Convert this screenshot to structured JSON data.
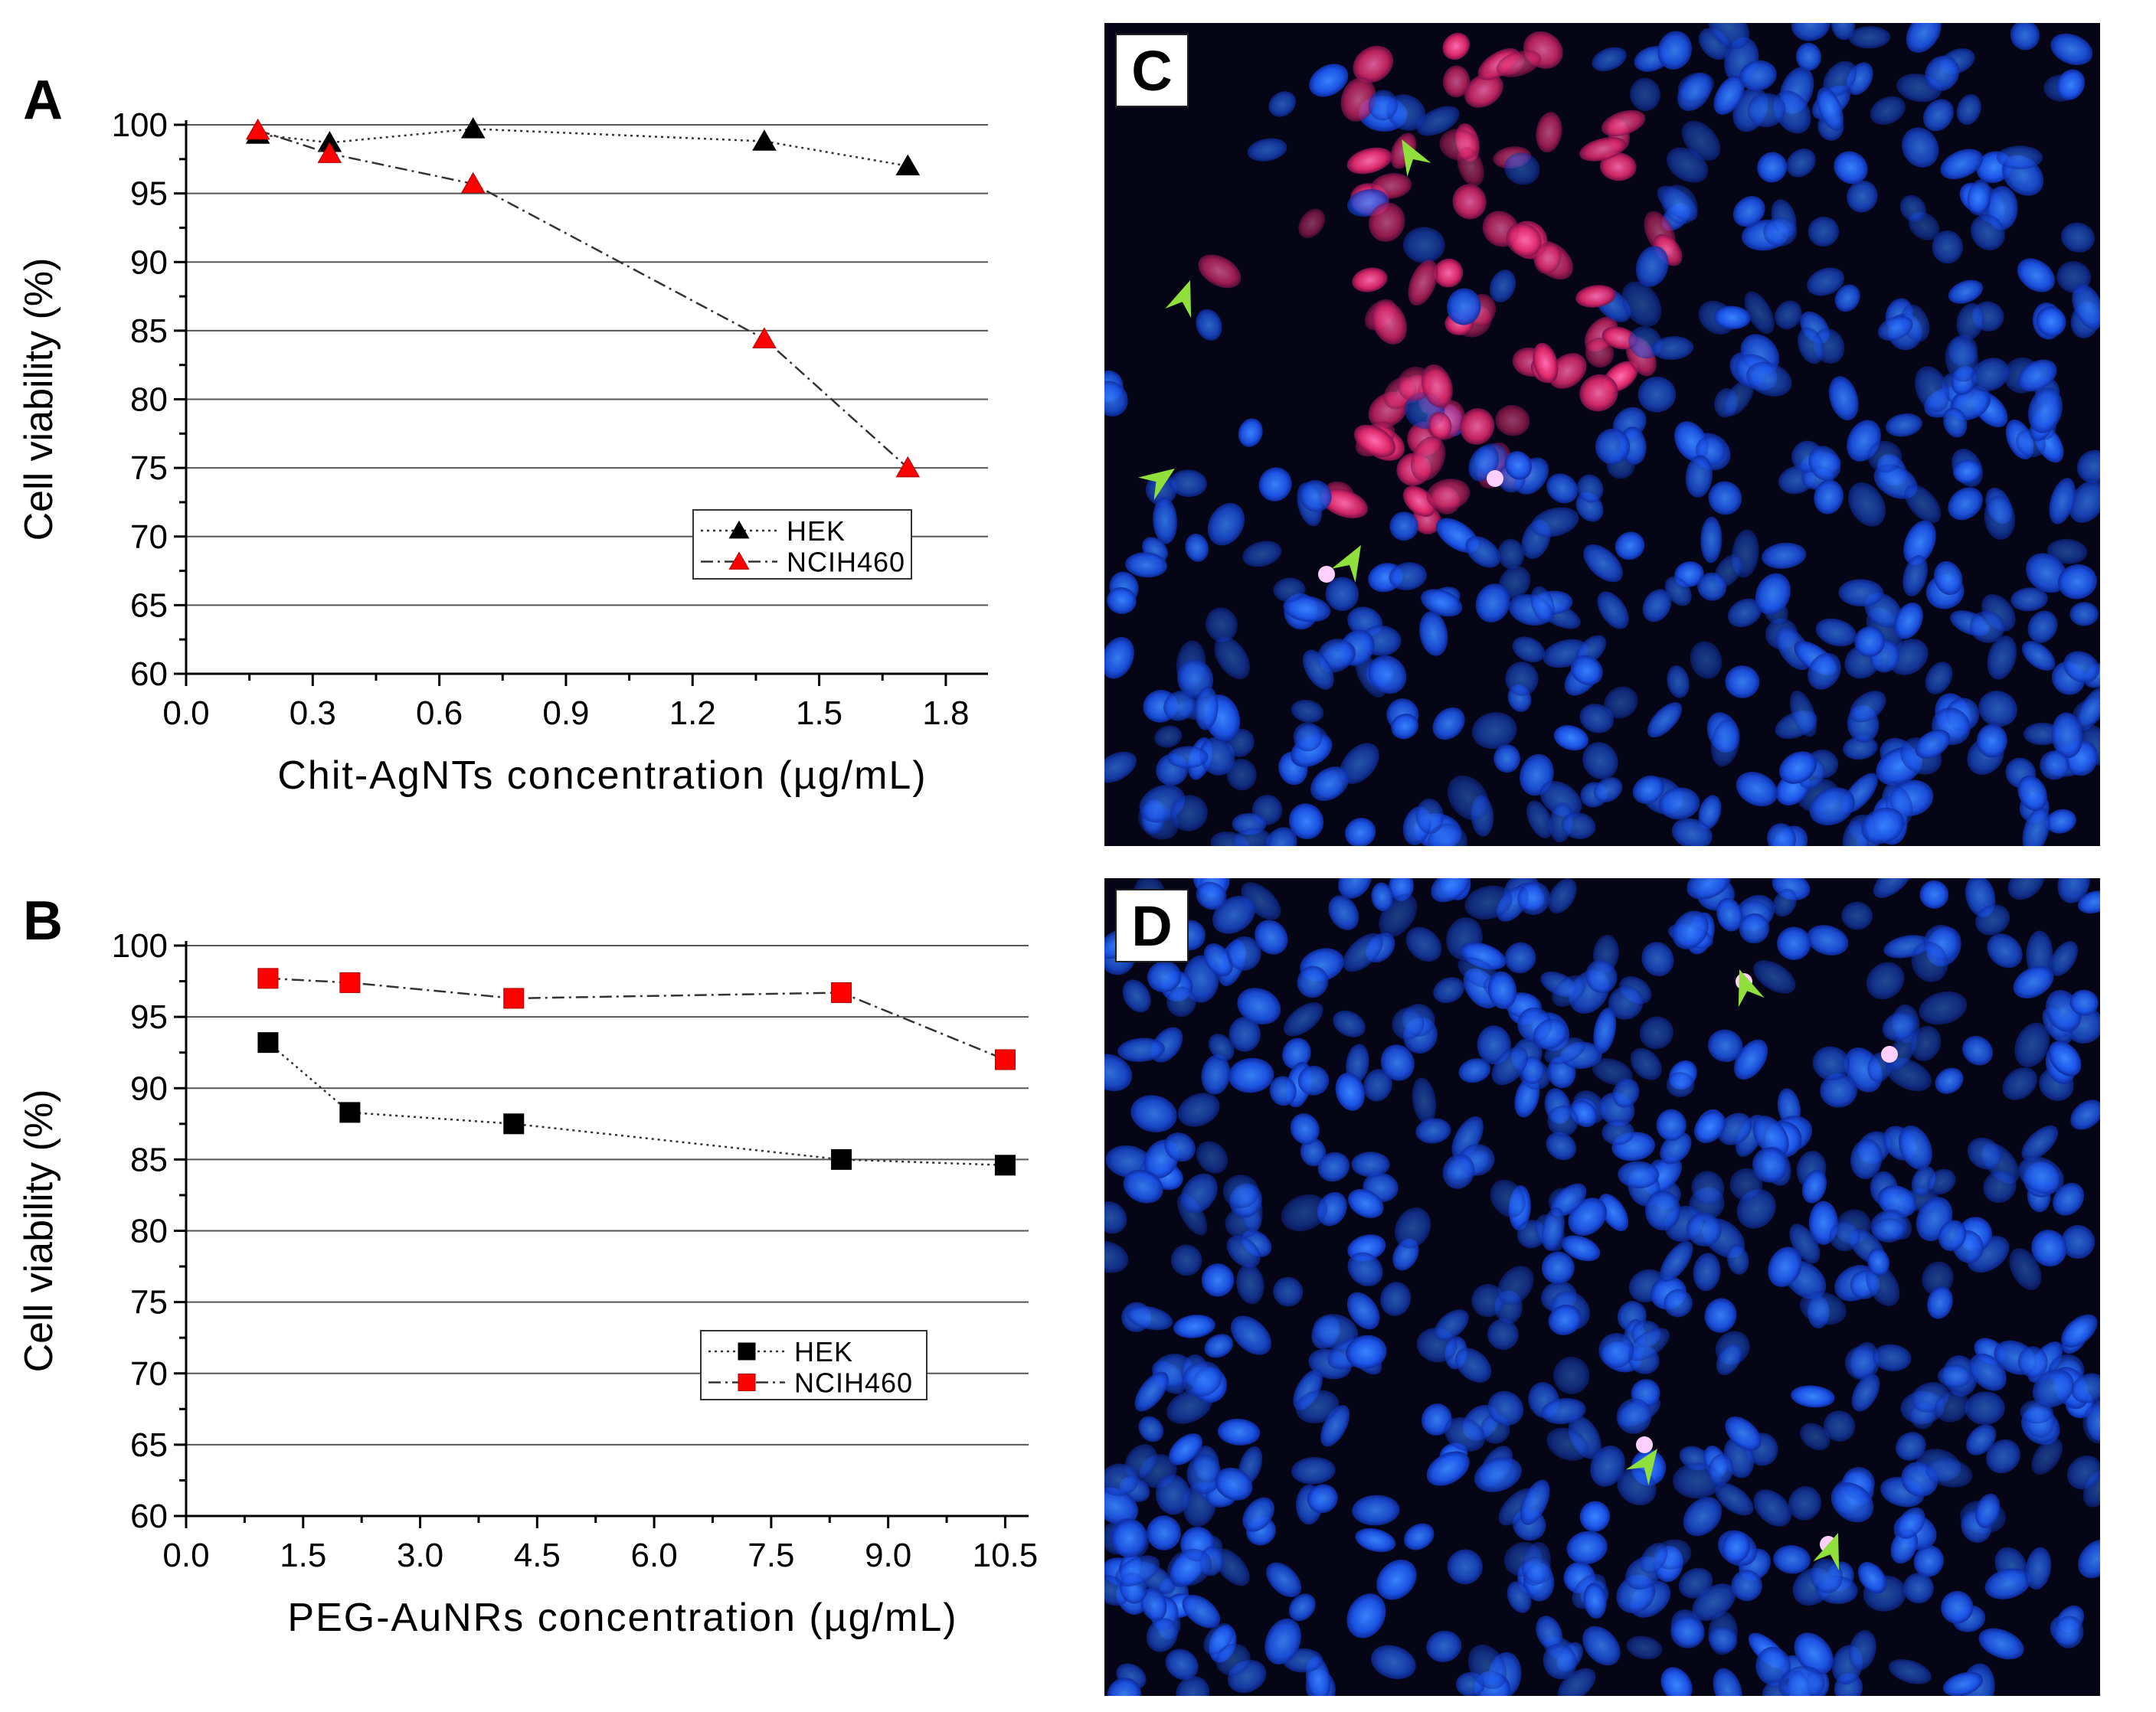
{
  "chart_data": [
    {
      "panel": "A",
      "type": "line",
      "xlabel": "Chit-AgNTs concentration (µg/mL)",
      "ylabel": "Cell viability (%)",
      "xlim": [
        0.0,
        1.9
      ],
      "ylim": [
        60,
        100
      ],
      "xticks": [
        "0.0",
        "0.3",
        "0.6",
        "0.9",
        "1.2",
        "1.5",
        "1.8"
      ],
      "yticks": [
        "60",
        "65",
        "70",
        "75",
        "80",
        "85",
        "90",
        "95",
        "100"
      ],
      "grid": "horizontal",
      "legend": "inside-right",
      "series": [
        {
          "name": "HEK",
          "marker": "triangle",
          "color": "#000000",
          "line": "dotted",
          "x": [
            0.17,
            0.34,
            0.68,
            1.37,
            1.71
          ],
          "y": [
            99.3,
            98.7,
            99.7,
            98.8,
            97.0
          ]
        },
        {
          "name": "NCIH460",
          "marker": "triangle",
          "color": "#ff0000",
          "line": "dashdot",
          "x": [
            0.17,
            0.34,
            0.68,
            1.37,
            1.71
          ],
          "y": [
            99.6,
            97.9,
            95.7,
            84.4,
            75.0
          ]
        }
      ]
    },
    {
      "panel": "B",
      "type": "line",
      "xlabel": "PEG-AuNRs concentration (µg/mL)",
      "ylabel": "Cell viability (%)",
      "xlim": [
        0.0,
        10.8
      ],
      "ylim": [
        60,
        100
      ],
      "xticks": [
        "0.0",
        "1.5",
        "3.0",
        "4.5",
        "6.0",
        "7.5",
        "9.0",
        "10.5"
      ],
      "yticks": [
        "60",
        "65",
        "70",
        "75",
        "80",
        "85",
        "90",
        "95",
        "100"
      ],
      "grid": "horizontal",
      "legend": "inside-right",
      "series": [
        {
          "name": "HEK",
          "marker": "square",
          "color": "#000000",
          "line": "dotted",
          "x": [
            1.05,
            2.1,
            4.2,
            8.4,
            10.5
          ],
          "y": [
            93.2,
            88.3,
            87.5,
            85.0,
            84.6
          ]
        },
        {
          "name": "NCIH460",
          "marker": "square",
          "color": "#ff0000",
          "line": "dashdot",
          "x": [
            1.05,
            2.1,
            4.2,
            8.4,
            10.5
          ],
          "y": [
            97.7,
            97.4,
            96.3,
            96.7,
            92.0
          ]
        }
      ]
    }
  ],
  "panels": {
    "a": "A",
    "b": "B",
    "c": "C",
    "d": "D"
  },
  "colors": {
    "nuclei": "#1f5bff",
    "apoptotic": "#ff2d7a",
    "arrow": "#8fe03a",
    "background": "#050516"
  }
}
